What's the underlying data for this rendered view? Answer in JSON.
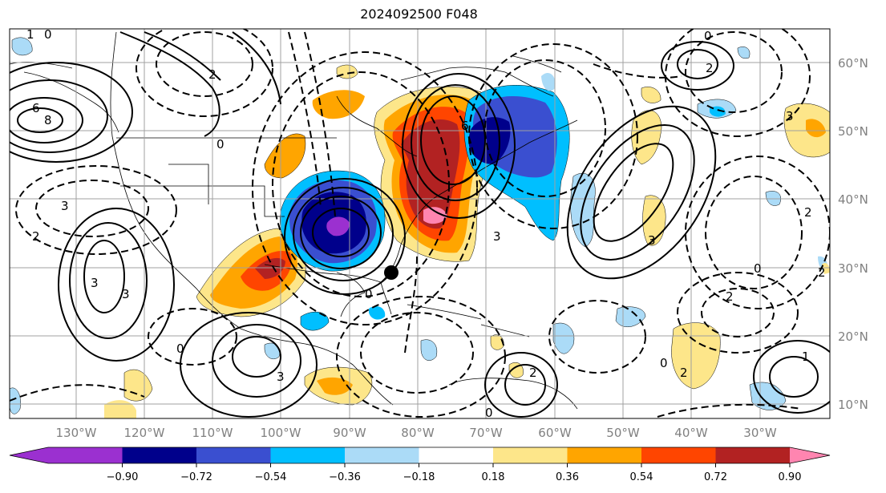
{
  "title": "2024092500 F048",
  "map": {
    "lon_range": [
      -138,
      -15
    ],
    "lat_range": [
      7,
      65
    ],
    "lon_labels": [
      "130°W",
      "120°W",
      "110°W",
      "100°W",
      "90°W",
      "80°W",
      "70°W",
      "60°W",
      "50°W",
      "40°W",
      "30°W"
    ],
    "lat_labels": [
      "60°N",
      "50°N",
      "40°N",
      "30°N",
      "20°N",
      "10°N"
    ],
    "marker": {
      "name": "storm-center",
      "lon": -84.5,
      "lat": 29.5
    }
  },
  "colorbar": {
    "ticks": [
      "−0.90",
      "−0.72",
      "−0.54",
      "−0.36",
      "−0.18",
      "0.18",
      "0.36",
      "0.54",
      "0.72",
      "0.90"
    ],
    "colors": {
      "under": "#9b30d0",
      "bins": [
        "#00008b",
        "#3a4fd0",
        "#00bfff",
        "#abdbf7",
        "#ffffff",
        "#fde68a",
        "#ffa500",
        "#ff4500",
        "#b22222"
      ],
      "over": "#ff85b0"
    }
  }
}
